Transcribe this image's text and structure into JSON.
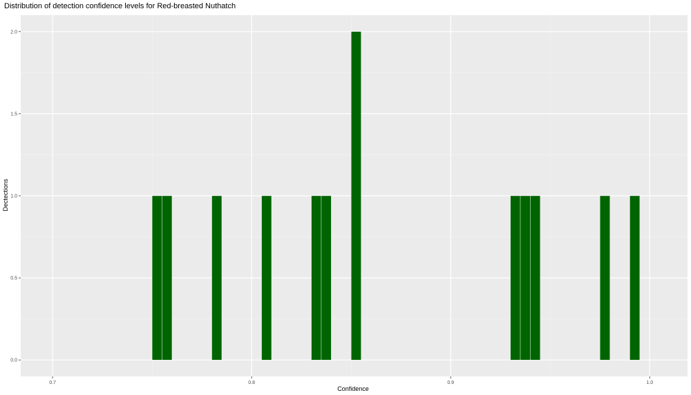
{
  "chart_data": {
    "type": "bar",
    "title": "Distribution of detection confidence levels for Red-breasted Nuthatch",
    "xlabel": "Confidence",
    "ylabel": "Dectections",
    "xlim": [
      0.684,
      1.019
    ],
    "ylim": [
      -0.1,
      2.1
    ],
    "bin_width": 0.005,
    "x_ticks": [
      "0.7",
      "0.8",
      "0.9",
      "1.0"
    ],
    "y_ticks": [
      "0.0",
      "0.5",
      "1.0",
      "1.5",
      "2.0"
    ],
    "bar_color": "#006400",
    "panel_color": "#ebebeb",
    "grid": true,
    "bins": [
      {
        "x": 0.7525,
        "count": 1
      },
      {
        "x": 0.7575,
        "count": 1
      },
      {
        "x": 0.7825,
        "count": 1
      },
      {
        "x": 0.8075,
        "count": 1
      },
      {
        "x": 0.8325,
        "count": 1
      },
      {
        "x": 0.8375,
        "count": 1
      },
      {
        "x": 0.8525,
        "count": 2
      },
      {
        "x": 0.9325,
        "count": 1
      },
      {
        "x": 0.9375,
        "count": 1
      },
      {
        "x": 0.9425,
        "count": 1
      },
      {
        "x": 0.9775,
        "count": 1
      },
      {
        "x": 0.9925,
        "count": 1
      }
    ]
  }
}
